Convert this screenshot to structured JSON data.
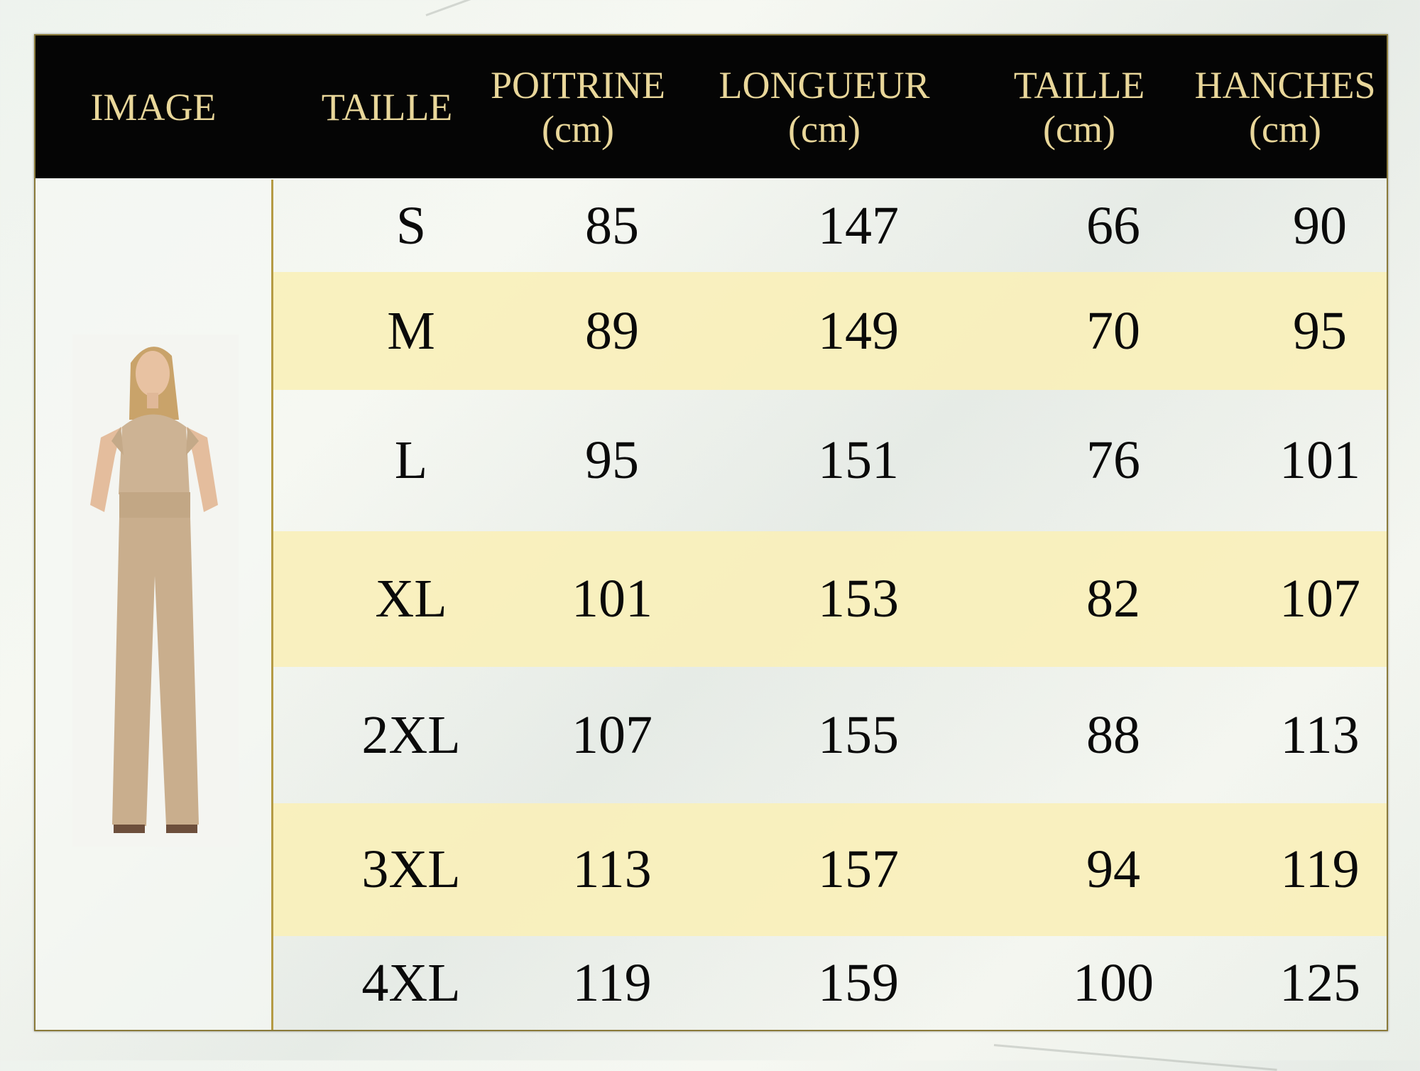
{
  "headers": {
    "image": "IMAGE",
    "size": "TAILLE",
    "chest": "POITRINE",
    "chest_unit": "(cm)",
    "length": "LONGUEUR",
    "length_unit": "(cm)",
    "waist": "TAILLE",
    "waist_unit": "(cm)",
    "hips": "HANCHES",
    "hips_unit": "(cm)"
  },
  "rows": [
    {
      "size": "S",
      "chest": "85",
      "length": "147",
      "waist": "66",
      "hips": "90"
    },
    {
      "size": "M",
      "chest": "89",
      "length": "149",
      "waist": "70",
      "hips": "95"
    },
    {
      "size": "L",
      "chest": "95",
      "length": "151",
      "waist": "76",
      "hips": "101"
    },
    {
      "size": "XL",
      "chest": "101",
      "length": "153",
      "waist": "82",
      "hips": "107"
    },
    {
      "size": "2XL",
      "chest": "107",
      "length": "155",
      "waist": "88",
      "hips": "113"
    },
    {
      "size": "3XL",
      "chest": "113",
      "length": "157",
      "waist": "94",
      "hips": "119"
    },
    {
      "size": "4XL",
      "chest": "119",
      "length": "159",
      "waist": "100",
      "hips": "125"
    }
  ],
  "colors": {
    "header_bg": "#050505",
    "header_text": "#e9d79a",
    "highlight_row": "#faf0b9",
    "border": "#b59b45"
  }
}
